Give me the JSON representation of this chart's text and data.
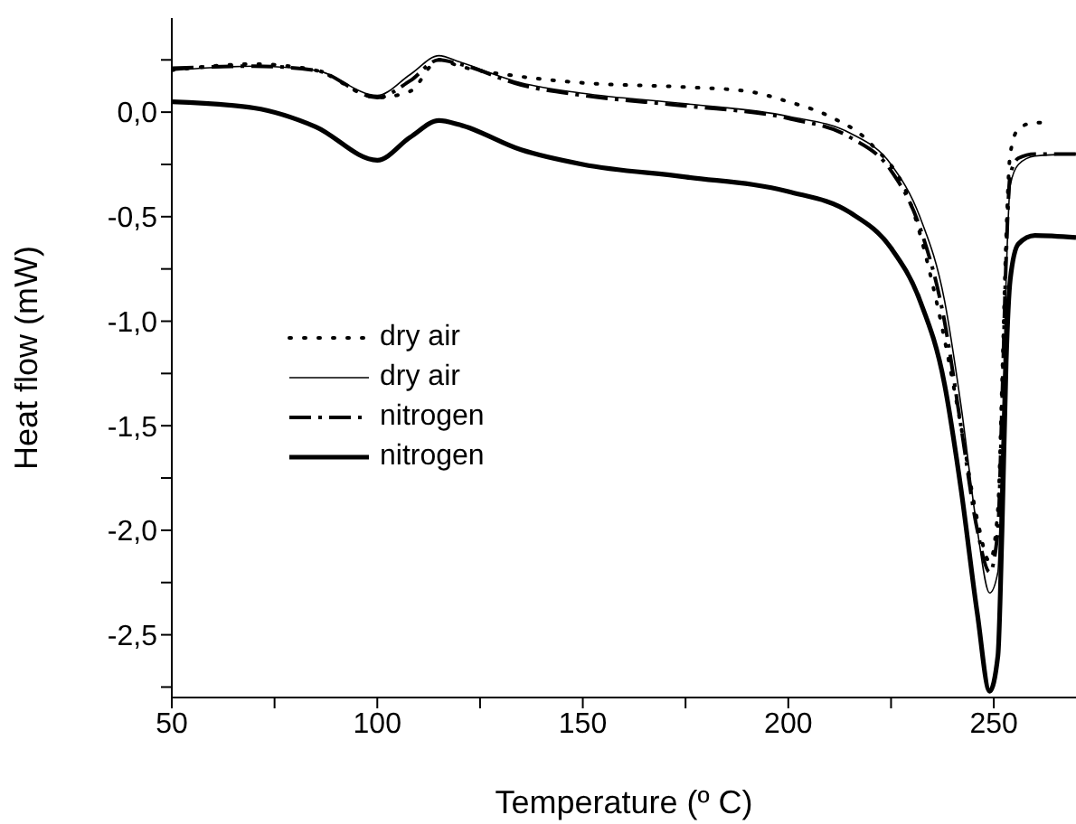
{
  "chart_data": {
    "type": "line",
    "xlabel": "Temperature (º C)",
    "ylabel": "Heat flow (mW)",
    "xlim": [
      50,
      270
    ],
    "xticks": [
      50,
      {
        "value": 75,
        "label": null
      },
      100,
      {
        "value": 125,
        "label": null
      },
      150,
      {
        "value": 175,
        "label": null
      },
      200,
      {
        "value": 225,
        "label": null
      },
      250
    ],
    "ylim": [
      -2.8,
      0.45
    ],
    "yticks": [
      {
        "value": -2.75,
        "label": null
      },
      {
        "value": -2.5,
        "label": "-2,5"
      },
      {
        "value": -2.25,
        "label": null
      },
      {
        "value": -2,
        "label": "-2,0"
      },
      {
        "value": -1.75,
        "label": null
      },
      {
        "value": -1.5,
        "label": "-1,5"
      },
      {
        "value": -1.25,
        "label": null
      },
      {
        "value": -1,
        "label": "-1,0"
      },
      {
        "value": -0.75,
        "label": null
      },
      {
        "value": -0.5,
        "label": "-0,5"
      },
      {
        "value": -0.25,
        "label": null
      },
      {
        "value": 0,
        "label": "0,0"
      },
      {
        "value": 0.25,
        "label": null
      }
    ],
    "grid": false,
    "legend": "left",
    "marker": "none",
    "series": [
      {
        "name": "dry air",
        "color": "#000000",
        "line_style": "dotted",
        "x": [
          50,
          70,
          85,
          100,
          108,
          115,
          120,
          135,
          150,
          175,
          190,
          200,
          210,
          220,
          230,
          236,
          242,
          246,
          249,
          251,
          252,
          253,
          254,
          256,
          260,
          263
        ],
        "values": [
          0.2,
          0.23,
          0.2,
          0.07,
          0.1,
          0.25,
          0.22,
          0.17,
          0.14,
          0.12,
          0.1,
          0.05,
          -0.02,
          -0.15,
          -0.45,
          -0.9,
          -1.5,
          -1.95,
          -2.15,
          -1.9,
          -1.3,
          -0.6,
          -0.2,
          -0.08,
          -0.05,
          -0.05
        ]
      },
      {
        "name": "dry air",
        "color": "#000000",
        "line_style": "solid",
        "x": [
          50,
          70,
          85,
          100,
          108,
          115,
          120,
          135,
          150,
          175,
          200,
          215,
          225,
          232,
          238,
          242,
          246,
          249,
          251,
          252,
          253,
          254,
          256,
          260,
          270
        ],
        "values": [
          0.2,
          0.22,
          0.2,
          0.08,
          0.18,
          0.27,
          0.24,
          0.14,
          0.09,
          0.04,
          -0.02,
          -0.1,
          -0.25,
          -0.5,
          -0.9,
          -1.4,
          -2,
          -2.3,
          -2.2,
          -1.6,
          -0.8,
          -0.35,
          -0.25,
          -0.21,
          -0.2
        ]
      },
      {
        "name": "nitrogen",
        "color": "#000000",
        "line_style": "dashdot",
        "x": [
          50,
          70,
          85,
          100,
          108,
          115,
          120,
          135,
          150,
          175,
          200,
          215,
          225,
          232,
          238,
          242,
          246,
          249,
          251,
          252,
          253,
          254,
          256,
          260,
          270
        ],
        "values": [
          0.21,
          0.22,
          0.2,
          0.07,
          0.15,
          0.25,
          0.23,
          0.13,
          0.08,
          0.03,
          -0.03,
          -0.12,
          -0.28,
          -0.55,
          -1,
          -1.5,
          -2,
          -2.2,
          -2,
          -1.4,
          -0.7,
          -0.3,
          -0.22,
          -0.2,
          -0.2
        ]
      },
      {
        "name": "nitrogen",
        "color": "#000000",
        "line_style": "solid",
        "x": [
          50,
          70,
          85,
          100,
          108,
          115,
          120,
          135,
          150,
          175,
          200,
          215,
          225,
          232,
          238,
          242,
          246,
          249,
          251,
          252,
          253,
          254,
          256,
          260,
          270
        ],
        "values": [
          0.05,
          0.02,
          -0.07,
          -0.23,
          -0.12,
          -0.04,
          -0.06,
          -0.18,
          -0.25,
          -0.31,
          -0.38,
          -0.48,
          -0.65,
          -0.9,
          -1.3,
          -1.8,
          -2.4,
          -2.77,
          -2.6,
          -2,
          -1.2,
          -0.8,
          -0.63,
          -0.59,
          -0.6
        ]
      }
    ]
  }
}
